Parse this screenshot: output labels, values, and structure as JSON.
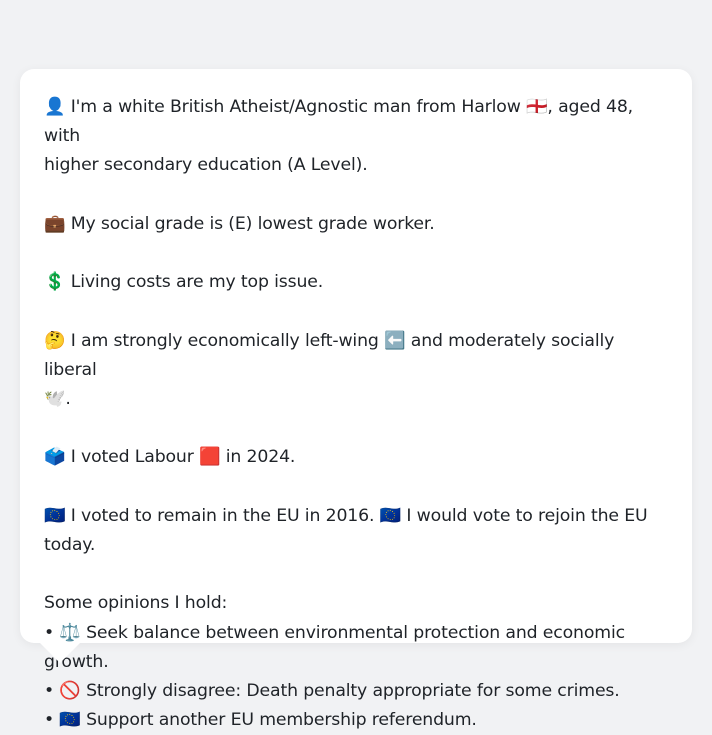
{
  "bubble": {
    "identity_line_1": "👤 I'm a white British Atheist/Agnostic man from Harlow 🏴󠁧󠁢󠁥󠁮󠁧󠁿, aged 48, with",
    "identity_line_2": "higher secondary education (A Level).",
    "social_grade": "💼 My social grade is (E) lowest grade worker.",
    "top_issue": "💲 Living costs are my top issue.",
    "politics_line_1": "🤔 I am strongly economically left-wing ⬅️ and moderately socially liberal",
    "politics_line_2": "🕊️.",
    "vote_2024": "🗳️ I voted Labour 🟥 in 2024.",
    "eu_vote": "🇪🇺 I voted to remain in the EU in 2016. 🇪🇺 I would vote to rejoin the EU today.",
    "opinions_heading": "Some opinions I hold:",
    "opinions": [
      "• ⚖️ Seek balance between environmental protection and economic growth.",
      "• 🚫 Strongly disagree: Death penalty appropriate for some crimes.",
      "• 🇪🇺 Support another EU membership referendum."
    ]
  }
}
